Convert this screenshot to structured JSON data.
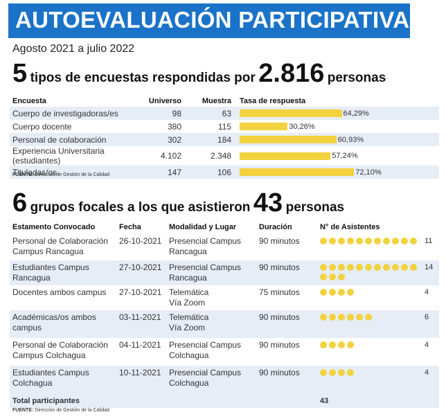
{
  "colors": {
    "header_bg": "#1a73c9",
    "bar": "#f2d23f",
    "row_alt": "#e6edf7"
  },
  "header": {
    "title": "AUTOEVALUACIÓN PARTICIPATIVA"
  },
  "subtitle": "Agosto 2021 a julio 2022",
  "section1": {
    "num1": "5",
    "text1": "tipos de encuestas respondidas por",
    "num2": "2.816",
    "text2": "personas"
  },
  "encuestas": {
    "headers": {
      "encuesta": "Encuesta",
      "universo": "Universo",
      "muestra": "Muestra",
      "tasa": "Tasa de respuesta"
    },
    "rows": [
      {
        "name": "Cuerpo de investigadoras/es",
        "universo": "98",
        "muestra": "63",
        "tasa": 64.29,
        "tasa_label": "64,29%"
      },
      {
        "name": "Cuerpo docente",
        "universo": "380",
        "muestra": "115",
        "tasa": 30.26,
        "tasa_label": "30,26%"
      },
      {
        "name": "Personal de colaboración",
        "universo": "302",
        "muestra": "184",
        "tasa": 60.93,
        "tasa_label": "60,93%"
      },
      {
        "name": "Experiencia Universitaria (estudiantes)",
        "universo": "4.102",
        "muestra": "2.348",
        "tasa": 57.24,
        "tasa_label": "57,24%"
      },
      {
        "name": "Tituladas/os",
        "universo": "147",
        "muestra": "106",
        "tasa": 72.1,
        "tasa_label": "72,10%"
      }
    ]
  },
  "fuente1": {
    "label": "FUENTE:",
    "text": "Dirección de Gestión de la Calidad"
  },
  "section2": {
    "num1": "6",
    "text1": "grupos focales a los que asistieron",
    "num2": "43",
    "text2": "personas"
  },
  "grupos": {
    "headers": {
      "estamento": "Estamento Convocado",
      "fecha": "Fecha",
      "modalidad": "Modalidad y Lugar",
      "duracion": "Duración",
      "asistentes": "N° de Asistentes"
    },
    "rows": [
      {
        "estamento": [
          "Personal de Colaboración",
          "Campus Rancagua"
        ],
        "fecha": "26-10-2021",
        "modalidad": [
          "Presencial Campus",
          "Rancagua"
        ],
        "duracion": "90 minutos",
        "asistentes": 11,
        "asistentes_label": "11"
      },
      {
        "estamento": [
          "Estudiantes Campus",
          "Rancagua"
        ],
        "fecha": "27-10-2021",
        "modalidad": [
          "Presencial Campus",
          "Rancagua"
        ],
        "duracion": "90 minutos",
        "asistentes": 14,
        "asistentes_label": "14"
      },
      {
        "estamento": [
          "Docentes ambos campus",
          ""
        ],
        "fecha": "27-10-2021",
        "modalidad": [
          "Telemática",
          "Vía Zoom"
        ],
        "duracion": "75 minutos",
        "asistentes": 4,
        "asistentes_label": "4"
      },
      {
        "estamento": [
          "Académicas/os ambos",
          "campus"
        ],
        "fecha": "03-11-2021",
        "modalidad": [
          "Telemática",
          " Vía Zoom"
        ],
        "duracion": "90 minutos",
        "asistentes": 6,
        "asistentes_label": "6"
      },
      {
        "estamento": [
          "Personal de Colaboración",
          "Campus Colchagua"
        ],
        "fecha": "04-11-2021",
        "modalidad": [
          "Presencial Campus",
          "Colchagua"
        ],
        "duracion": "90 minutos",
        "asistentes": 4,
        "asistentes_label": "4"
      },
      {
        "estamento": [
          "Estudiantes Campus",
          "Colchagua"
        ],
        "fecha": "10-11-2021",
        "modalidad": [
          "Presencial Campus",
          "Colchagua"
        ],
        "duracion": "90 minutos",
        "asistentes": 4,
        "asistentes_label": "4"
      }
    ],
    "total_label": "Total participantes",
    "total_value": "43"
  },
  "fuente2": {
    "label": "FUENTE:",
    "text": "Dirección de Gestión de la Calidad"
  }
}
